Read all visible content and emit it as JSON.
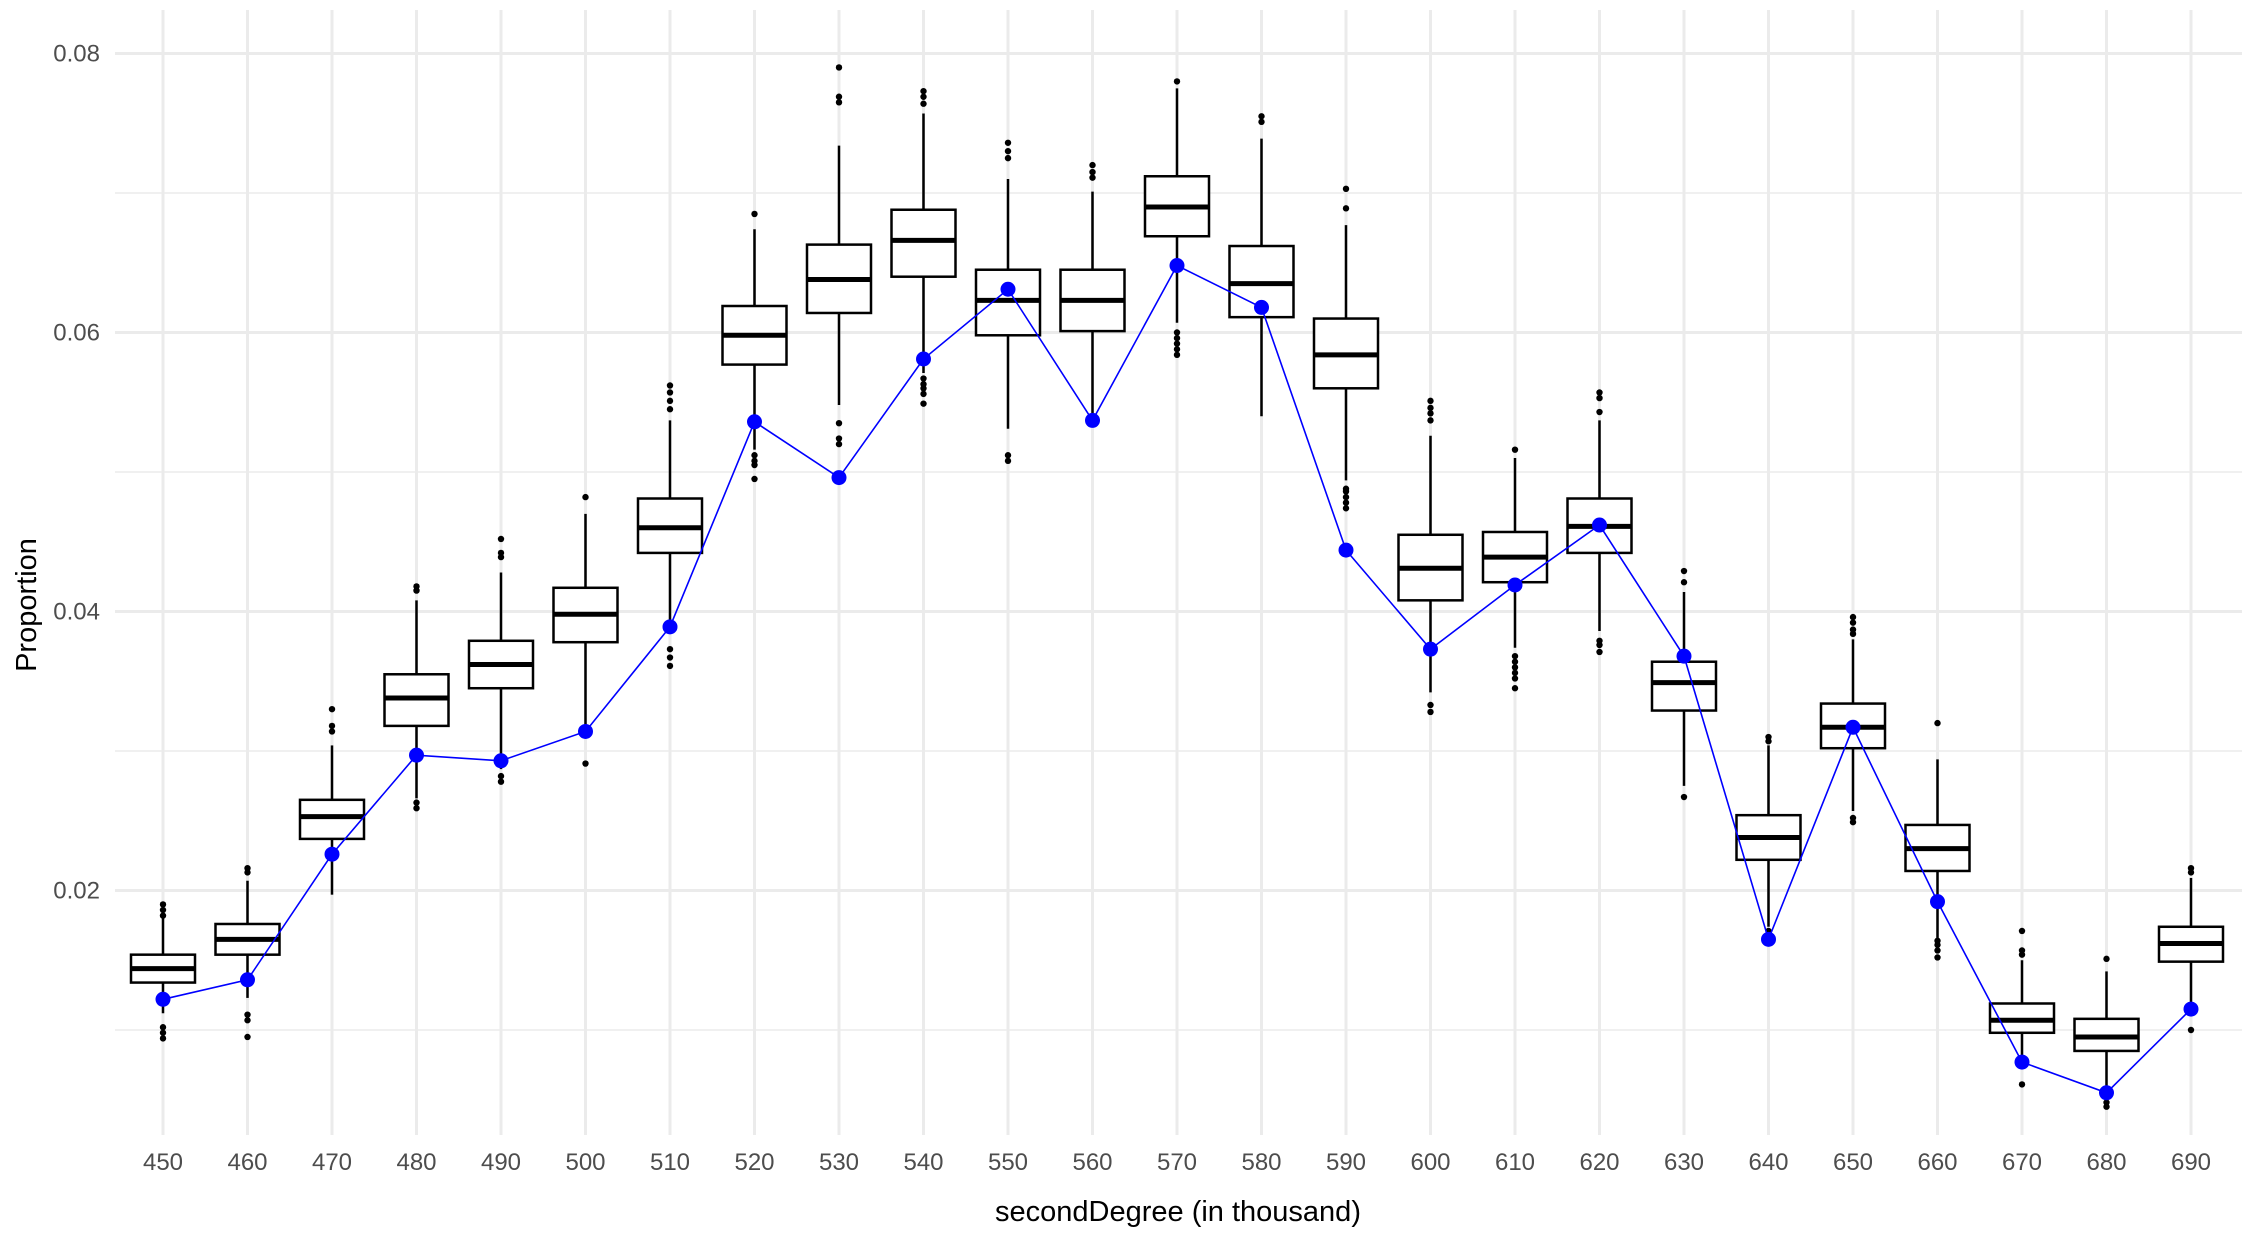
{
  "chart_data": {
    "type": "box",
    "xlabel": "secondDegree (in thousand)",
    "ylabel": "Proportion",
    "categories": [
      "450",
      "460",
      "470",
      "480",
      "490",
      "500",
      "510",
      "520",
      "530",
      "540",
      "550",
      "560",
      "570",
      "580",
      "590",
      "600",
      "610",
      "620",
      "630",
      "640",
      "650",
      "660",
      "670",
      "680",
      "690"
    ],
    "ylim": [
      0.0,
      0.082
    ],
    "yticks": [
      {
        "value": 0.02,
        "label": "0.02"
      },
      {
        "value": 0.04,
        "label": "0.04"
      },
      {
        "value": 0.06,
        "label": "0.06"
      },
      {
        "value": 0.08,
        "label": "0.08"
      }
    ],
    "grid": true,
    "boxes": [
      {
        "q1": 0.0134,
        "median": 0.0144,
        "q3": 0.0154,
        "whisker_low": 0.0112,
        "whisker_high": 0.0181,
        "outliers": [
          0.0094,
          0.0098,
          0.0102,
          0.0182,
          0.0186,
          0.019
        ]
      },
      {
        "q1": 0.0154,
        "median": 0.0165,
        "q3": 0.0176,
        "whisker_low": 0.0123,
        "whisker_high": 0.0207,
        "outliers": [
          0.0095,
          0.0107,
          0.0111,
          0.0213,
          0.0216
        ]
      },
      {
        "q1": 0.0237,
        "median": 0.0253,
        "q3": 0.0265,
        "whisker_low": 0.0197,
        "whisker_high": 0.0304,
        "outliers": [
          0.0314,
          0.0318,
          0.033
        ]
      },
      {
        "q1": 0.0318,
        "median": 0.0338,
        "q3": 0.0355,
        "whisker_low": 0.0266,
        "whisker_high": 0.0408,
        "outliers": [
          0.0259,
          0.0263,
          0.0415,
          0.0418
        ]
      },
      {
        "q1": 0.0345,
        "median": 0.0362,
        "q3": 0.0379,
        "whisker_low": 0.0287,
        "whisker_high": 0.0428,
        "outliers": [
          0.0278,
          0.0282,
          0.0439,
          0.0442,
          0.0452
        ]
      },
      {
        "q1": 0.0378,
        "median": 0.0398,
        "q3": 0.0417,
        "whisker_low": 0.0318,
        "whisker_high": 0.047,
        "outliers": [
          0.0291,
          0.0482
        ]
      },
      {
        "q1": 0.0442,
        "median": 0.046,
        "q3": 0.0481,
        "whisker_low": 0.0384,
        "whisker_high": 0.0537,
        "outliers": [
          0.0361,
          0.0367,
          0.0373,
          0.0545,
          0.0551,
          0.0557,
          0.0562
        ]
      },
      {
        "q1": 0.0577,
        "median": 0.0598,
        "q3": 0.0619,
        "whisker_low": 0.0516,
        "whisker_high": 0.0674,
        "outliers": [
          0.0495,
          0.0505,
          0.0508,
          0.0512,
          0.0685
        ]
      },
      {
        "q1": 0.0614,
        "median": 0.0638,
        "q3": 0.0663,
        "whisker_low": 0.0548,
        "whisker_high": 0.0734,
        "outliers": [
          0.052,
          0.0524,
          0.0535,
          0.0765,
          0.0769,
          0.079
        ]
      },
      {
        "q1": 0.064,
        "median": 0.0666,
        "q3": 0.0688,
        "whisker_low": 0.0571,
        "whisker_high": 0.0757,
        "outliers": [
          0.0549,
          0.0556,
          0.056,
          0.0563,
          0.0567,
          0.0764,
          0.0769,
          0.0773
        ]
      },
      {
        "q1": 0.0598,
        "median": 0.0623,
        "q3": 0.0645,
        "whisker_low": 0.0531,
        "whisker_high": 0.071,
        "outliers": [
          0.0508,
          0.0512,
          0.0725,
          0.073,
          0.0736
        ]
      },
      {
        "q1": 0.0601,
        "median": 0.0623,
        "q3": 0.0645,
        "whisker_low": 0.0533,
        "whisker_high": 0.0701,
        "outliers": [
          0.0711,
          0.0715,
          0.072
        ]
      },
      {
        "q1": 0.0669,
        "median": 0.069,
        "q3": 0.0712,
        "whisker_low": 0.0607,
        "whisker_high": 0.0775,
        "outliers": [
          0.0584,
          0.0588,
          0.0592,
          0.0596,
          0.06,
          0.078
        ]
      },
      {
        "q1": 0.0611,
        "median": 0.0635,
        "q3": 0.0662,
        "whisker_low": 0.054,
        "whisker_high": 0.0739,
        "outliers": [
          0.0751,
          0.0755
        ]
      },
      {
        "q1": 0.056,
        "median": 0.0584,
        "q3": 0.061,
        "whisker_low": 0.0494,
        "whisker_high": 0.0677,
        "outliers": [
          0.0474,
          0.0478,
          0.0482,
          0.0486,
          0.0488,
          0.0689,
          0.0703
        ]
      },
      {
        "q1": 0.0408,
        "median": 0.0431,
        "q3": 0.0455,
        "whisker_low": 0.0342,
        "whisker_high": 0.0526,
        "outliers": [
          0.0328,
          0.0333,
          0.0537,
          0.0542,
          0.0546,
          0.0551
        ]
      },
      {
        "q1": 0.0421,
        "median": 0.0439,
        "q3": 0.0457,
        "whisker_low": 0.0374,
        "whisker_high": 0.051,
        "outliers": [
          0.0345,
          0.0352,
          0.0356,
          0.036,
          0.0364,
          0.0368,
          0.0516
        ]
      },
      {
        "q1": 0.0442,
        "median": 0.0461,
        "q3": 0.0481,
        "whisker_low": 0.0386,
        "whisker_high": 0.0537,
        "outliers": [
          0.0371,
          0.0376,
          0.0379,
          0.0543,
          0.0553,
          0.0557
        ]
      },
      {
        "q1": 0.0329,
        "median": 0.0349,
        "q3": 0.0364,
        "whisker_low": 0.0275,
        "whisker_high": 0.0414,
        "outliers": [
          0.0267,
          0.0421,
          0.0429
        ]
      },
      {
        "q1": 0.0222,
        "median": 0.0238,
        "q3": 0.0254,
        "whisker_low": 0.0174,
        "whisker_high": 0.0304,
        "outliers": [
          0.0171,
          0.0307,
          0.031
        ]
      },
      {
        "q1": 0.0302,
        "median": 0.0317,
        "q3": 0.0334,
        "whisker_low": 0.0257,
        "whisker_high": 0.038,
        "outliers": [
          0.0249,
          0.0252,
          0.0384,
          0.0387,
          0.0392,
          0.0396
        ]
      },
      {
        "q1": 0.0214,
        "median": 0.023,
        "q3": 0.0247,
        "whisker_low": 0.0166,
        "whisker_high": 0.0294,
        "outliers": [
          0.0152,
          0.0157,
          0.0161,
          0.0164,
          0.032
        ]
      },
      {
        "q1": 0.0098,
        "median": 0.0107,
        "q3": 0.0119,
        "whisker_low": 0.0072,
        "whisker_high": 0.015,
        "outliers": [
          0.0061,
          0.0154,
          0.0157,
          0.0171
        ]
      },
      {
        "q1": 0.0085,
        "median": 0.0095,
        "q3": 0.0108,
        "whisker_low": 0.0052,
        "whisker_high": 0.0142,
        "outliers": [
          0.0045,
          0.0048,
          0.0151
        ]
      },
      {
        "q1": 0.0149,
        "median": 0.0162,
        "q3": 0.0174,
        "whisker_low": 0.0113,
        "whisker_high": 0.0209,
        "outliers": [
          0.01,
          0.0213,
          0.0216
        ]
      }
    ],
    "observed": {
      "color": "#0000ff",
      "values": [
        0.0122,
        0.0136,
        0.0226,
        0.0297,
        0.0293,
        0.0314,
        0.0389,
        0.0536,
        0.0496,
        0.0581,
        0.0631,
        0.0537,
        0.0648,
        0.0618,
        0.0444,
        0.0373,
        0.0419,
        0.0462,
        0.0368,
        0.0165,
        0.0317,
        0.0192,
        0.0077,
        0.0055,
        0.0115
      ]
    },
    "box_color": "#000000",
    "grid_color": "#ebebeb",
    "background": "#ffffff"
  }
}
